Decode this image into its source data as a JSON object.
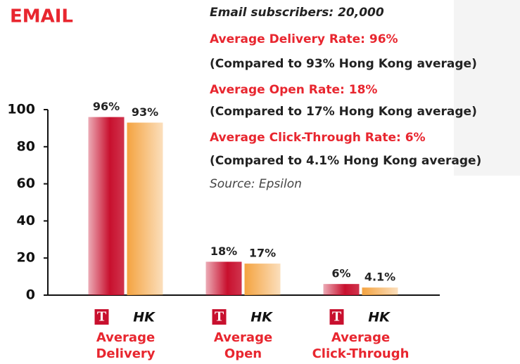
{
  "chart_data": {
    "type": "bar",
    "title": "EMAIL",
    "annotations": [
      "Email subscribers: 20,000",
      "Average Delivery Rate: 96%",
      "(Compared to 93% Hong Kong average)",
      "Average Open Rate: 18%",
      "(Compared to 17% Hong Kong average)",
      "Average Click-Through Rate: 6%",
      "(Compared to 4.1% Hong Kong average)",
      "Source: Epsilon"
    ],
    "categories": [
      "Average Delivery",
      "Average Open",
      "Average Click-Through"
    ],
    "series": [
      {
        "name": "T",
        "color": "#c8102e",
        "values": [
          96,
          18,
          6
        ],
        "value_labels": [
          "96%",
          "18%",
          "6%"
        ]
      },
      {
        "name": "HK",
        "color": "#f4a340",
        "values": [
          93,
          17,
          4.1
        ],
        "value_labels": [
          "93%",
          "17%",
          "4.1%"
        ]
      }
    ],
    "ylim": [
      0,
      100
    ],
    "yticks": [
      0,
      20,
      40,
      60,
      80,
      100
    ]
  }
}
